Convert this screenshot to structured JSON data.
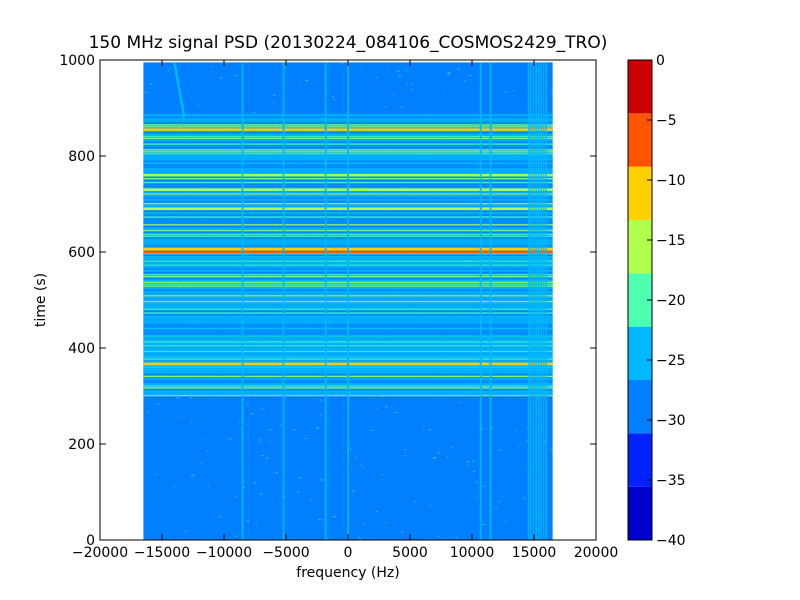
{
  "chart_data": {
    "type": "heatmap",
    "title": "150 MHz signal PSD (20130224_084106_COSMOS2429_TRO)",
    "xlabel": "frequency (Hz)",
    "ylabel": "time (s)",
    "xlim": [
      -20000,
      20000
    ],
    "ylim": [
      0,
      1000
    ],
    "x_ticks": [
      -20000,
      -15000,
      -10000,
      -5000,
      0,
      5000,
      10000,
      15000,
      20000
    ],
    "x_tick_labels": [
      "−20000",
      "−15000",
      "−10000",
      "−5000",
      "0",
      "5000",
      "10000",
      "15000",
      "20000"
    ],
    "y_ticks": [
      0,
      200,
      400,
      600,
      800,
      1000
    ],
    "y_tick_labels": [
      "0",
      "200",
      "400",
      "600",
      "800",
      "1000"
    ],
    "data_extent": {
      "x": [
        -16500,
        16500
      ],
      "y": [
        0,
        995
      ]
    },
    "background_level": -27.5,
    "colorbar": {
      "levels": [
        -40,
        -35,
        -30,
        -25,
        -20,
        -15,
        -10,
        -5,
        0
      ],
      "tick_labels": [
        "−40",
        "−35",
        "−30",
        "−25",
        "−20",
        "−15",
        "−10",
        "−5",
        "0"
      ],
      "colors": [
        "#0000cd",
        "#0022ff",
        "#0080ff",
        "#00b8ff",
        "#4dffb0",
        "#b0ff4d",
        "#ffd000",
        "#ff5500",
        "#cd0000"
      ]
    },
    "vertical_features": [
      {
        "freq_start": -14000,
        "freq_end": -13200,
        "time_start": 880,
        "time_end": 995,
        "level": -20
      },
      {
        "freq": -8500,
        "time_start": 0,
        "time_end": 995,
        "level": -22
      },
      {
        "freq": -5200,
        "time_start": 0,
        "time_end": 995,
        "level": -24
      },
      {
        "freq": -1800,
        "time_start": 0,
        "time_end": 995,
        "level": -22
      },
      {
        "freq": 0,
        "time_start": 0,
        "time_end": 995,
        "level": -22
      },
      {
        "freq": 10700,
        "time_start": 0,
        "time_end": 995,
        "level": -22
      },
      {
        "freq": 11500,
        "time_start": 0,
        "time_end": 995,
        "level": -23
      },
      {
        "freq_start": 14500,
        "freq_end": 16000,
        "time_start": 0,
        "time_end": 995,
        "level": -20
      }
    ],
    "horizontal_features": [
      {
        "time_start": 300,
        "time_end": 890,
        "level": -20,
        "note": "striped band"
      },
      {
        "time": 600,
        "level": -2
      },
      {
        "time": 606,
        "level": -7
      },
      {
        "time": 367,
        "level": -5
      },
      {
        "time": 855,
        "level": -8
      },
      {
        "time": 760,
        "level": -10
      },
      {
        "time": 730,
        "level": -10
      },
      {
        "time": 690,
        "level": -12
      }
    ]
  }
}
